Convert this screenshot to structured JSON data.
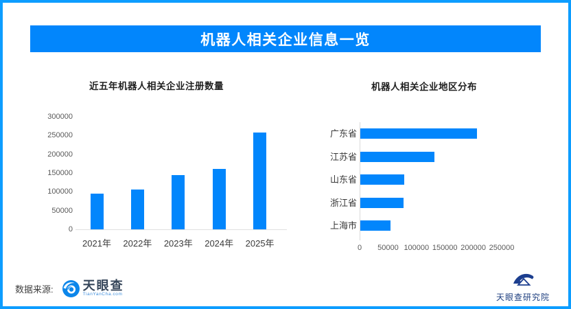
{
  "header": {
    "title": "机器人相关企业信息一览",
    "banner_color": "#0286fc",
    "border_color": "#0d9dff",
    "text_color": "#ffffff"
  },
  "chart_data": [
    {
      "type": "bar",
      "orientation": "vertical",
      "title": "近五年机器人相关企业注册数量",
      "categories": [
        "2021年",
        "2022年",
        "2023年",
        "2024年",
        "2025年"
      ],
      "values": [
        95000,
        107000,
        145000,
        161000,
        258000
      ],
      "y_ticks": [
        0,
        50000,
        100000,
        150000,
        200000,
        250000,
        300000
      ],
      "ylim": [
        0,
        300000
      ],
      "xlabel": "",
      "ylabel": "",
      "grid": false,
      "legend": "none",
      "bar_color": "#0286fc"
    },
    {
      "type": "bar",
      "orientation": "horizontal",
      "title": "机器人相关企业地区分布",
      "categories": [
        "广东省",
        "江苏省",
        "山东省",
        "浙江省",
        "上海市"
      ],
      "values": [
        205000,
        130000,
        77000,
        76000,
        53000
      ],
      "x_ticks": [
        0,
        50000,
        100000,
        150000,
        200000,
        250000
      ],
      "xlim": [
        0,
        250000
      ],
      "xlabel": "",
      "ylabel": "",
      "grid": false,
      "legend": "none",
      "bar_color": "#0286fc"
    }
  ],
  "footer": {
    "source_label": "数据来源:",
    "source_logo_text": "天眼查",
    "source_logo_sub": "TianYanCha.com",
    "institute_label": "天眼查研究院"
  }
}
